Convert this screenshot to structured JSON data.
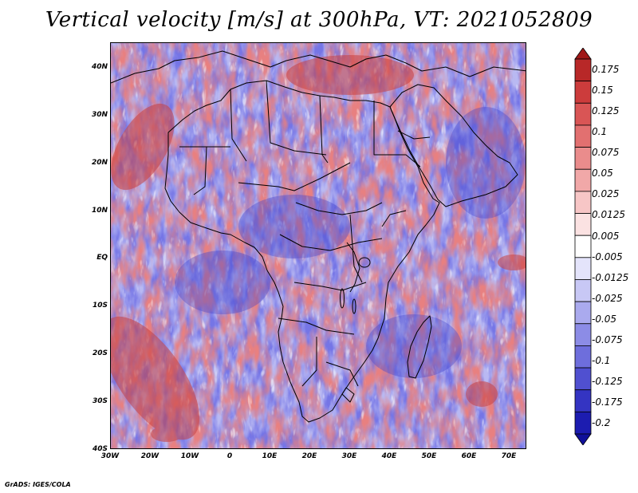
{
  "title": "Vertical velocity [m/s] at 300hPa, VT: 2021052809",
  "footer": "GrADS: IGES/COLA",
  "map": {
    "lon_range": [
      -30,
      75
    ],
    "lat_range": [
      -40,
      45
    ],
    "y_ticks": [
      "40N",
      "30N",
      "20N",
      "10N",
      "EQ",
      "10S",
      "20S",
      "30S",
      "40S"
    ],
    "x_ticks": [
      "30W",
      "20W",
      "10W",
      "0",
      "10E",
      "20E",
      "30E",
      "40E",
      "50E",
      "60E",
      "70E"
    ]
  },
  "colorbar": {
    "labels": [
      "0.175",
      "0.15",
      "0.125",
      "0.1",
      "0.075",
      "0.05",
      "0.025",
      "0.0125",
      "0.005",
      "-0.005",
      "-0.0125",
      "-0.025",
      "-0.05",
      "-0.075",
      "-0.1",
      "-0.125",
      "-0.175",
      "-0.2"
    ],
    "colors": [
      "#a01818",
      "#b82828",
      "#cc3c3c",
      "#d95555",
      "#e27070",
      "#ea8c8c",
      "#f1a8a8",
      "#f7c6c6",
      "#fbe2e2",
      "#ffffff",
      "#e4e4fb",
      "#c8c8f5",
      "#aaaaee",
      "#8c8ce6",
      "#6e6edc",
      "#5050d0",
      "#3434c2",
      "#1c1cb0",
      "#10109a"
    ]
  }
}
